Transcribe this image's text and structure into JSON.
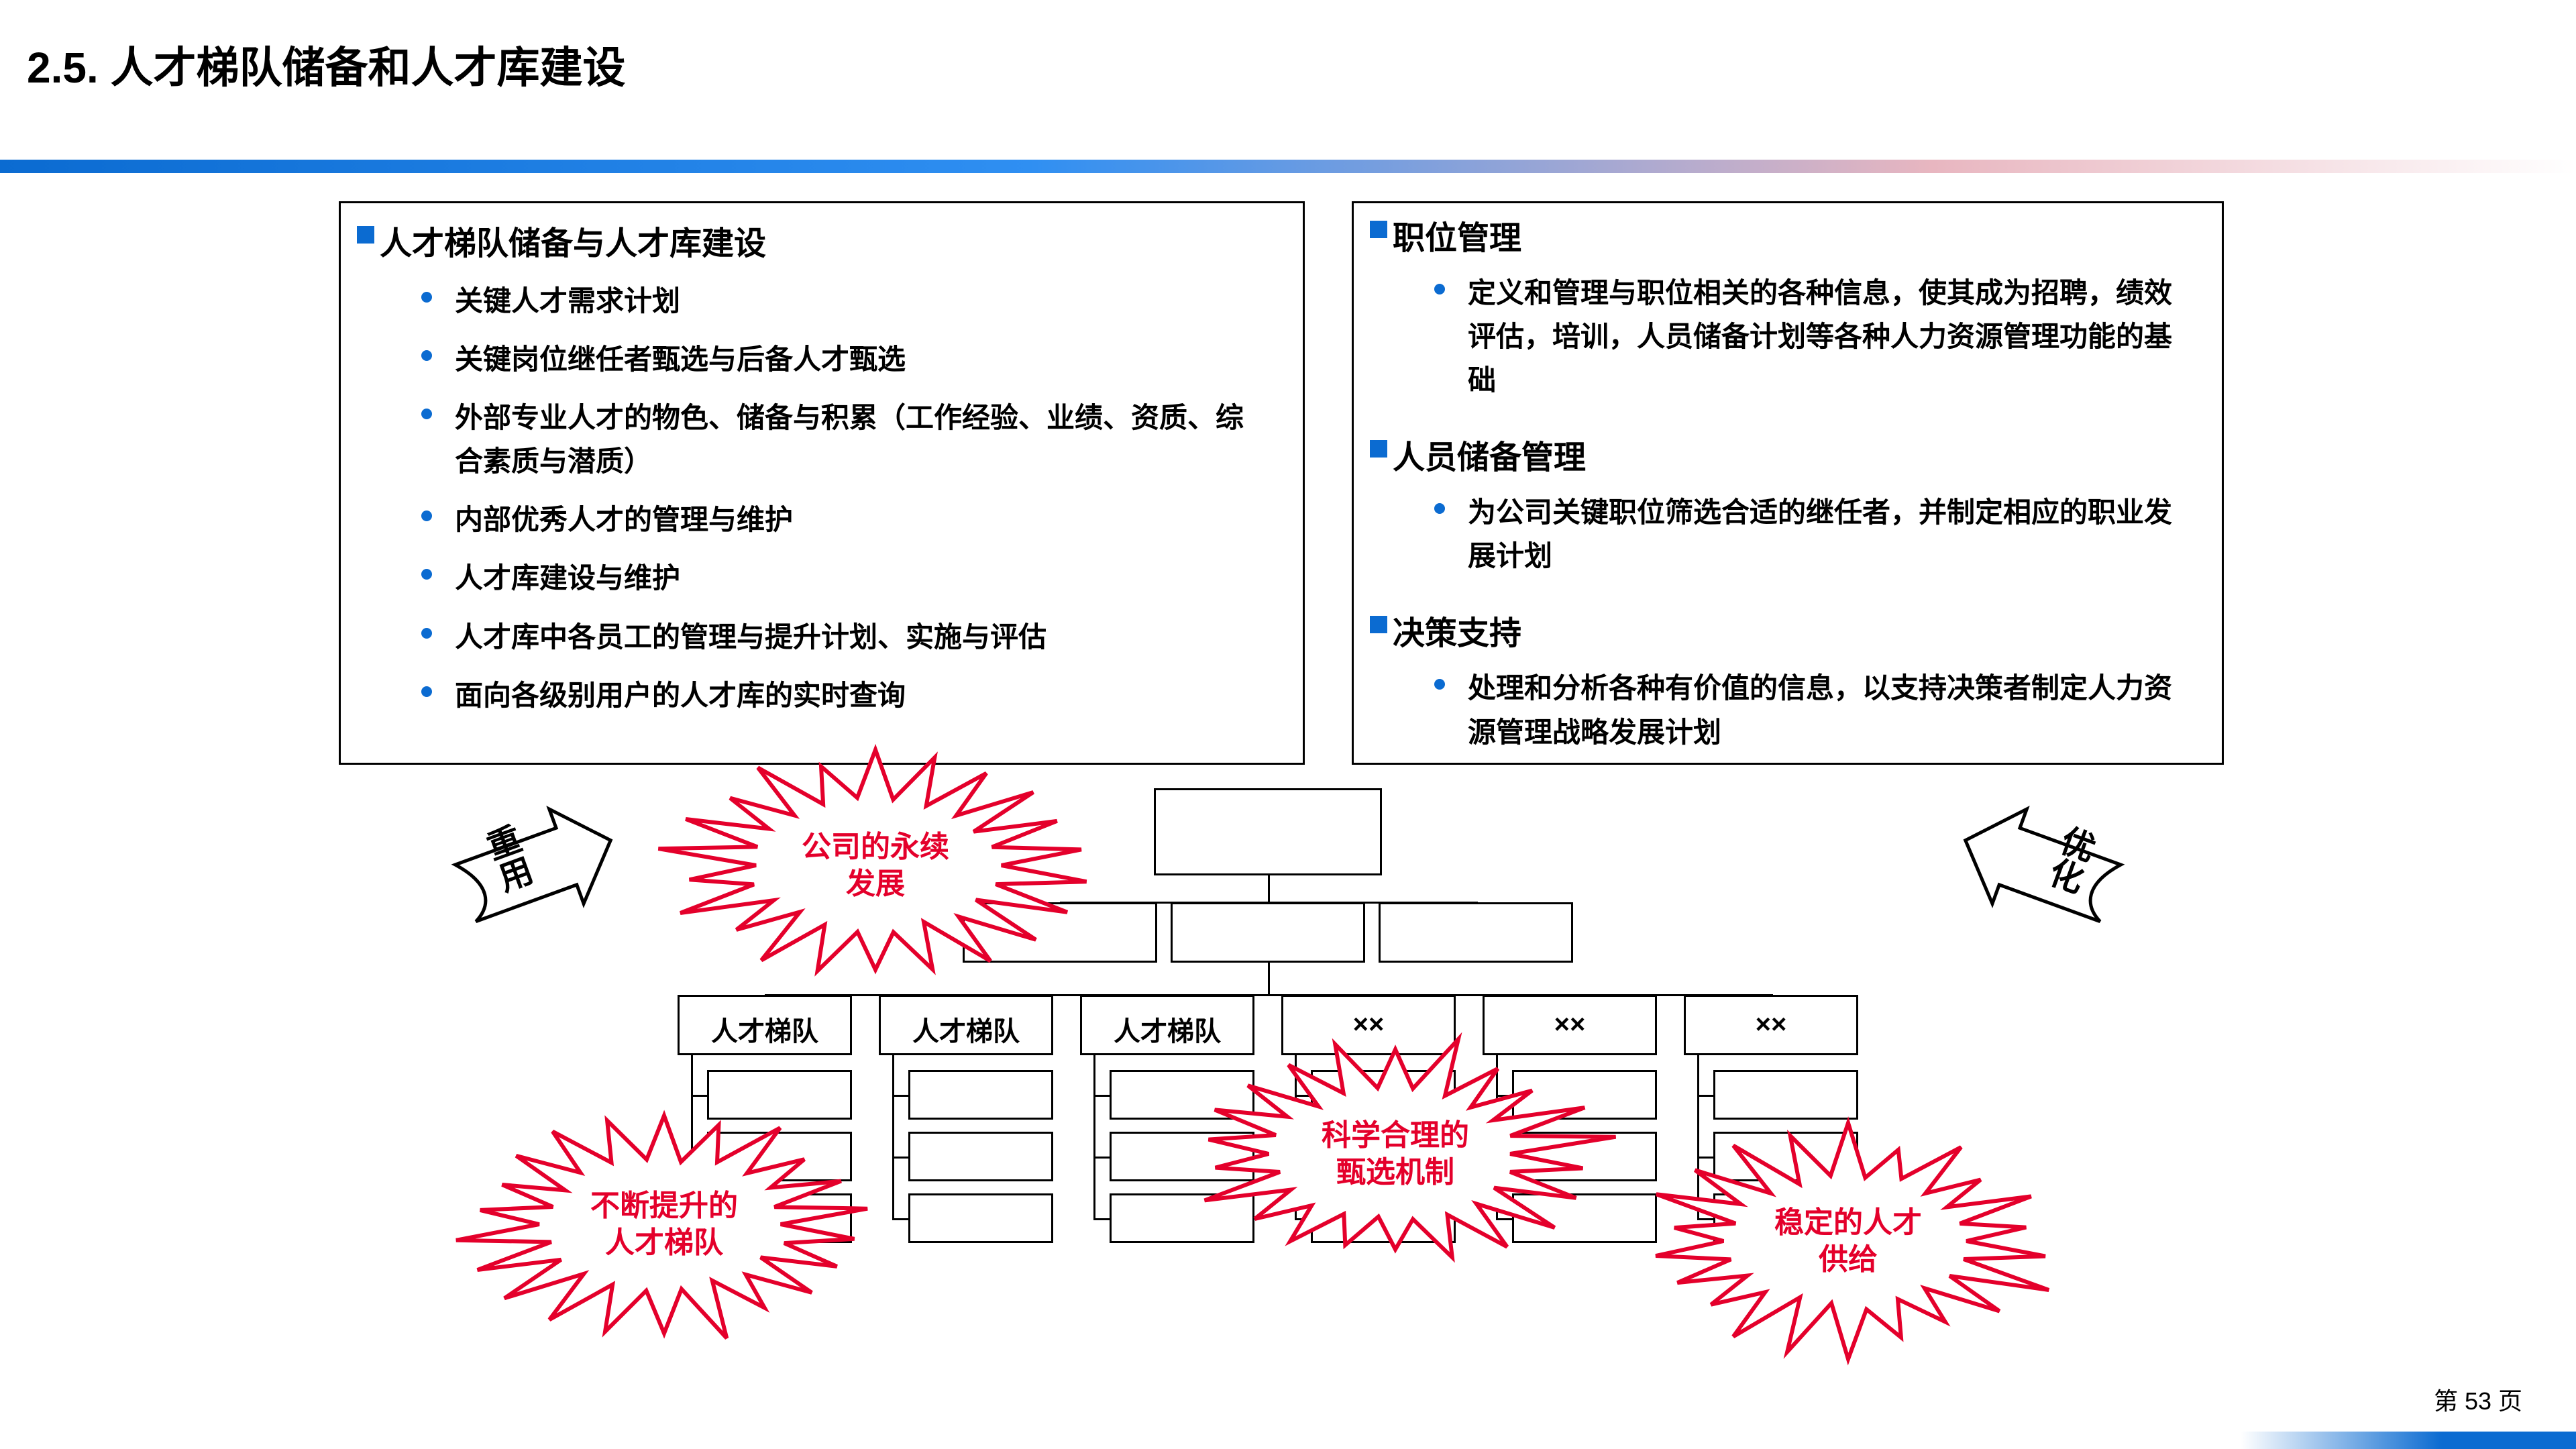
{
  "title": "2.5. 人才梯队储备和人才库建设",
  "left_card": {
    "heading": "人才梯队储备与人才库建设",
    "items": [
      "关键人才需求计划",
      "关键岗位继任者甄选与后备人才甄选",
      "外部专业人才的物色、储备与积累（工作经验、业绩、资质、综合素质与潜质）",
      "内部优秀人才的管理与维护",
      "人才库建设与维护",
      "人才库中各员工的管理与提升计划、实施与评估",
      "面向各级别用户的人才库的实时查询"
    ]
  },
  "right_card": {
    "sections": [
      {
        "heading": "职位管理",
        "items": [
          "定义和管理与职位相关的各种信息，使其成为招聘，绩效评估，培训，人员储备计划等各种人力资源管理功能的基础"
        ]
      },
      {
        "heading": "人员储备管理",
        "items": [
          "为公司关键职位筛选合适的继任者，并制定相应的职业发展计划"
        ]
      },
      {
        "heading": "决策支持",
        "items": [
          "处理和分析各种有价值的信息，以支持决策者制定人力资源管理战略发展计划"
        ]
      }
    ]
  },
  "side_arrows": {
    "left": "重用",
    "right": "优化"
  },
  "bursts": {
    "a": "公司的永续\n发展",
    "b": "不断提升的\n人才梯队",
    "c": "科学合理的\n甄选机制",
    "d": "稳定的人才\n供给"
  },
  "org": {
    "row2_count": 3,
    "col_labels": [
      "人才梯队",
      "人才梯队",
      "人才梯队",
      "××",
      "××",
      "××"
    ],
    "sub_rows": 3
  },
  "page_label": "第 53 页",
  "colors": {
    "accent": "#0b6bd1",
    "burst_stroke": "#e4002b"
  }
}
